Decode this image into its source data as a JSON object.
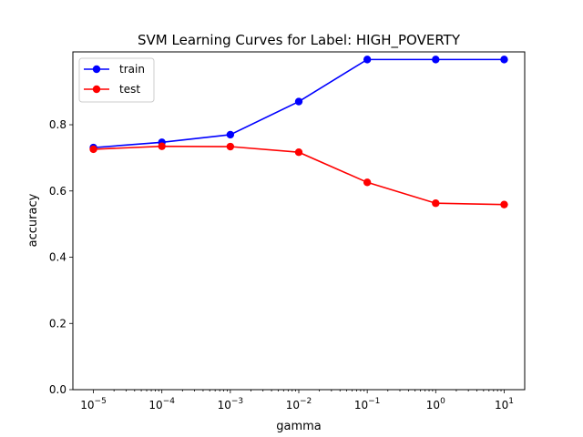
{
  "chart_data": {
    "type": "line",
    "title": "SVM Learning Curves for Label: HIGH_POVERTY",
    "xlabel": "gamma",
    "ylabel": "accuracy",
    "xscale": "log",
    "x": [
      1e-05,
      0.0001,
      0.001,
      0.01,
      0.1,
      1,
      10
    ],
    "xticks": [
      {
        "base": "10",
        "exp": "−5"
      },
      {
        "base": "10",
        "exp": "−4"
      },
      {
        "base": "10",
        "exp": "−3"
      },
      {
        "base": "10",
        "exp": "−2"
      },
      {
        "base": "10",
        "exp": "−1"
      },
      {
        "base": "10",
        "exp": "0"
      },
      {
        "base": "10",
        "exp": "1"
      }
    ],
    "yticks": [
      "0.0",
      "0.2",
      "0.4",
      "0.6",
      "0.8"
    ],
    "yticks_values": [
      0.0,
      0.2,
      0.4,
      0.6,
      0.8
    ],
    "ylim": [
      0.0,
      1.02
    ],
    "legend_position": "top-left",
    "grid": false,
    "series": [
      {
        "name": "train",
        "color": "#0000ff",
        "values": [
          0.731,
          0.747,
          0.77,
          0.87,
          0.997,
          0.997,
          0.997
        ]
      },
      {
        "name": "test",
        "color": "#ff0000",
        "values": [
          0.726,
          0.735,
          0.734,
          0.717,
          0.626,
          0.563,
          0.559
        ]
      }
    ]
  }
}
